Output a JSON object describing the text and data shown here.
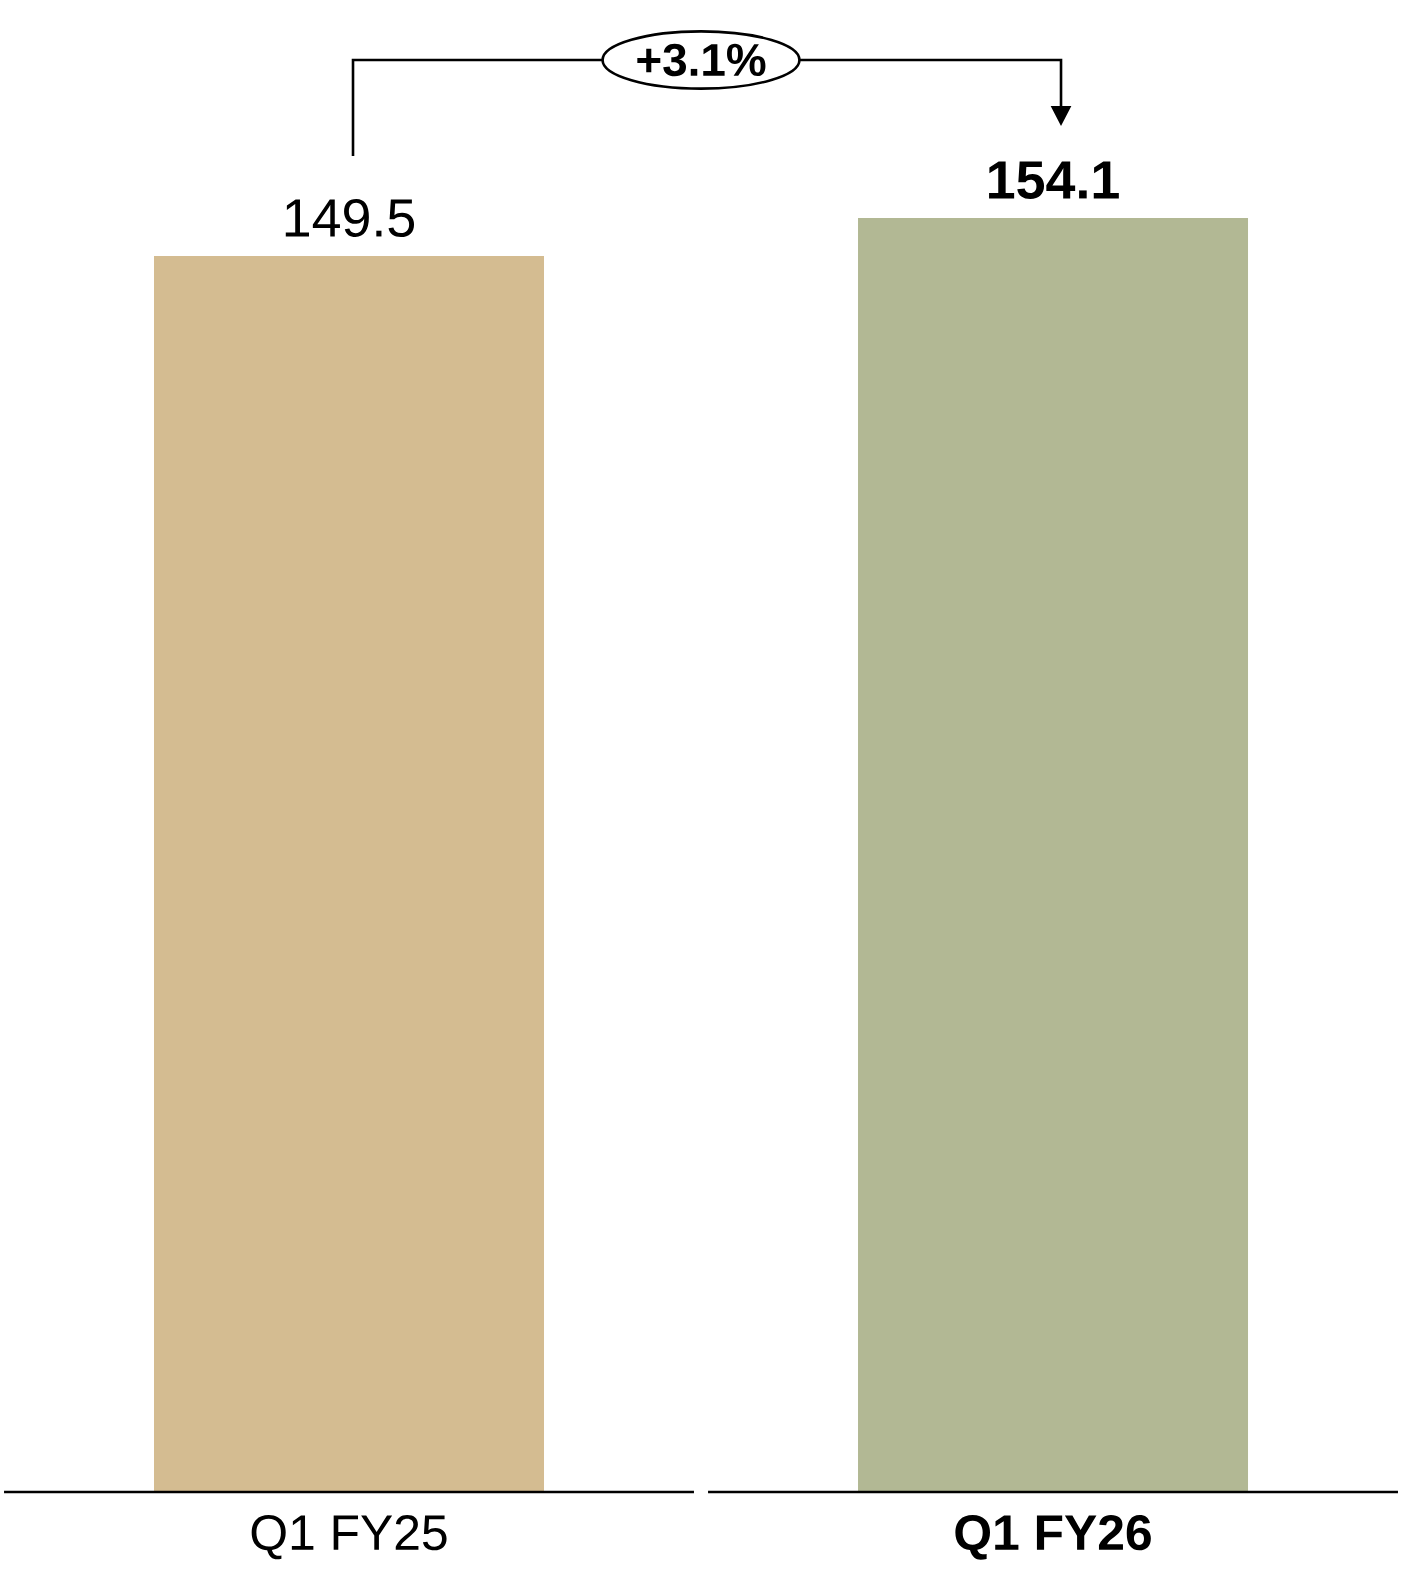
{
  "chart_data": {
    "type": "bar",
    "categories": [
      "Q1 FY25",
      "Q1 FY26"
    ],
    "values": [
      149.5,
      154.1
    ],
    "colors": [
      "#d4bc91",
      "#b2b894"
    ],
    "data_labels": true,
    "annotations": [
      "+3.1%"
    ]
  }
}
